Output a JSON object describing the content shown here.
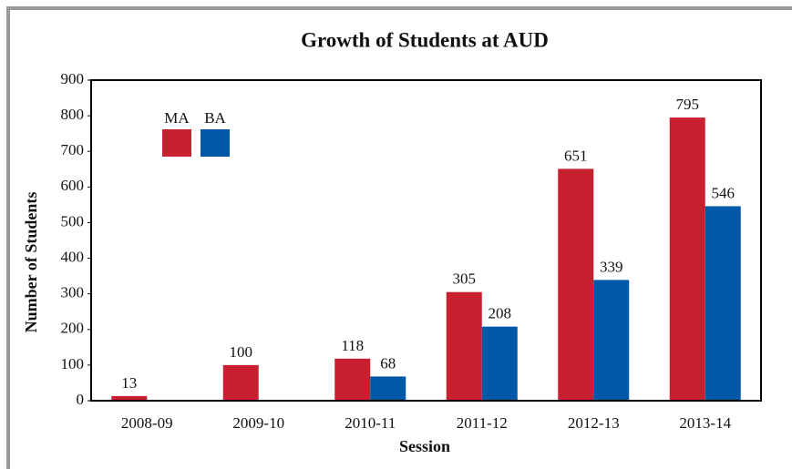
{
  "chart_data": {
    "type": "bar",
    "title": "Growth of Students at AUD",
    "xlabel": "Session",
    "ylabel": "Number of Students",
    "categories": [
      "2008-09",
      "2009-10",
      "2010-11",
      "2011-12",
      "2012-13",
      "2013-14"
    ],
    "series": [
      {
        "name": "MA",
        "color": "#c8202f",
        "values": [
          13,
          100,
          118,
          305,
          651,
          795
        ]
      },
      {
        "name": "BA",
        "color": "#0058a8",
        "values": [
          null,
          null,
          68,
          208,
          339,
          546
        ]
      }
    ],
    "ylim": [
      0,
      900
    ],
    "yticks": [
      0,
      100,
      200,
      300,
      400,
      500,
      600,
      700,
      800,
      900
    ],
    "legend": "upper left",
    "data_labels": true
  }
}
